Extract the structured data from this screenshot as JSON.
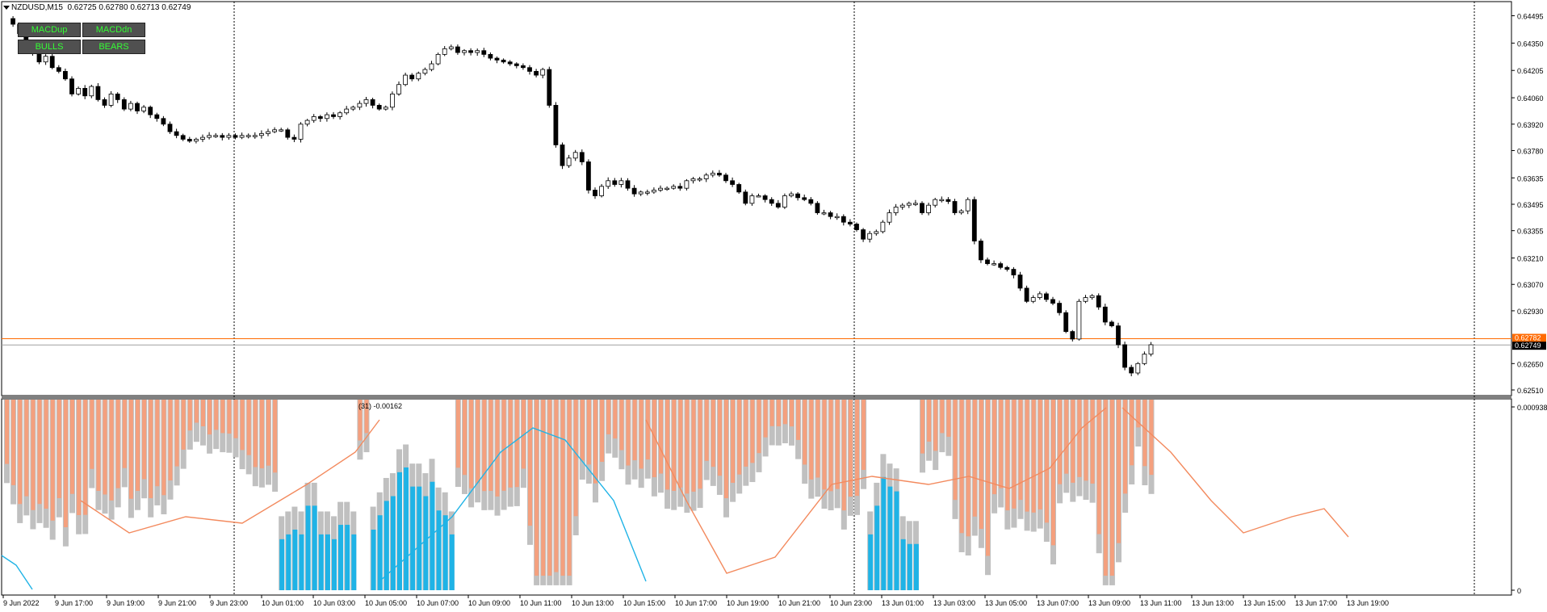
{
  "header": {
    "symbol": "NZDUSD,M15",
    "quote": "0.62725 0.62780 0.62713 0.62749"
  },
  "buttons": [
    {
      "label": "MACDup"
    },
    {
      "label": "MACDdn"
    },
    {
      "label": "BULLS"
    },
    {
      "label": "BEARS"
    }
  ],
  "indicator_label": "(31) -0.00162",
  "colors": {
    "bull_hist": "#1fb3e6",
    "bear_hist": "#f4a07e",
    "shadow_hist": "#c0c0c0",
    "signal_up": "#1fb3e6",
    "signal_dn": "#f38a5e",
    "ask_line": "#ff6a00",
    "bid_line": "#a0a0a0",
    "button_text": "#33ff33"
  },
  "chart_data": [
    {
      "type": "candlestick",
      "title": "NZDUSD,M15",
      "ylim": [
        0.6248,
        0.6457
      ],
      "price_labels": [
        "0.64495",
        "0.64350",
        "0.64205",
        "0.64060",
        "0.63920",
        "0.63780",
        "0.63635",
        "0.63495",
        "0.63355",
        "0.63210",
        "0.63070",
        "0.62930",
        "0.62650",
        "0.62510"
      ],
      "ask_label": "0.62782",
      "bid_label": "0.62749",
      "x_labels": [
        "9 Jun 2022",
        "9 Jun 17:00",
        "9 Jun 19:00",
        "9 Jun 21:00",
        "9 Jun 23:00",
        "10 Jun 01:00",
        "10 Jun 03:00",
        "10 Jun 05:00",
        "10 Jun 07:00",
        "10 Jun 09:00",
        "10 Jun 11:00",
        "10 Jun 13:00",
        "10 Jun 15:00",
        "10 Jun 17:00",
        "10 Jun 19:00",
        "10 Jun 21:00",
        "10 Jun 23:00",
        "13 Jun 01:00",
        "13 Jun 03:00",
        "13 Jun 05:00",
        "13 Jun 07:00",
        "13 Jun 09:00",
        "13 Jun 11:00",
        "13 Jun 13:00",
        "13 Jun 15:00",
        "13 Jun 17:00",
        "13 Jun 19:00"
      ],
      "close_path": [
        0.6448,
        0.6445,
        0.644,
        0.6436,
        0.643,
        0.6425,
        0.6428,
        0.6422,
        0.642,
        0.6416,
        0.6408,
        0.6411,
        0.6407,
        0.6412,
        0.6405,
        0.6402,
        0.6408,
        0.6405,
        0.64,
        0.6403,
        0.6399,
        0.6401,
        0.6397,
        0.6395,
        0.6392,
        0.6388,
        0.6386,
        0.6384,
        0.6383,
        0.6384,
        0.6385,
        0.6386,
        0.6386,
        0.6385,
        0.6386,
        0.6385,
        0.6386,
        0.6386,
        0.6386,
        0.6387,
        0.6388,
        0.6389,
        0.6389,
        0.6385,
        0.6384,
        0.6392,
        0.6394,
        0.6396,
        0.6395,
        0.6397,
        0.6396,
        0.6398,
        0.64,
        0.6401,
        0.6403,
        0.6405,
        0.6402,
        0.64,
        0.6401,
        0.6408,
        0.6413,
        0.6418,
        0.6416,
        0.6419,
        0.6421,
        0.6424,
        0.6429,
        0.6432,
        0.6433,
        0.643,
        0.6431,
        0.643,
        0.6431,
        0.6429,
        0.6427,
        0.6426,
        0.6425,
        0.6424,
        0.6423,
        0.6422,
        0.642,
        0.6418,
        0.6421,
        0.6402,
        0.6381,
        0.637,
        0.6374,
        0.6377,
        0.6372,
        0.6357,
        0.6354,
        0.6359,
        0.6362,
        0.636,
        0.6362,
        0.6358,
        0.6355,
        0.6356,
        0.6356,
        0.6357,
        0.6358,
        0.6358,
        0.6359,
        0.6358,
        0.6362,
        0.6363,
        0.6363,
        0.6365,
        0.6366,
        0.6365,
        0.6362,
        0.636,
        0.6356,
        0.635,
        0.6354,
        0.6354,
        0.6352,
        0.635,
        0.6348,
        0.6354,
        0.6355,
        0.6353,
        0.6352,
        0.635,
        0.6345,
        0.6345,
        0.6343,
        0.6343,
        0.634,
        0.6339,
        0.6336,
        0.6331,
        0.6334,
        0.6335,
        0.634,
        0.6345,
        0.6348,
        0.6349,
        0.635,
        0.635,
        0.6345,
        0.6349,
        0.6352,
        0.6352,
        0.6351,
        0.6345,
        0.6346,
        0.6352,
        0.633,
        0.632,
        0.6318,
        0.6318,
        0.6316,
        0.6315,
        0.6312,
        0.6305,
        0.6298,
        0.63,
        0.6302,
        0.6299,
        0.6297,
        0.6292,
        0.6282,
        0.6278,
        0.6298,
        0.63,
        0.6301,
        0.6295,
        0.6287,
        0.6285,
        0.6275,
        0.6263,
        0.626,
        0.6265,
        0.627,
        0.6275
      ]
    },
    {
      "type": "histogram",
      "ylabels": [
        "0.000938",
        "0"
      ],
      "overlay_text": "(31) -0.00162"
    }
  ]
}
